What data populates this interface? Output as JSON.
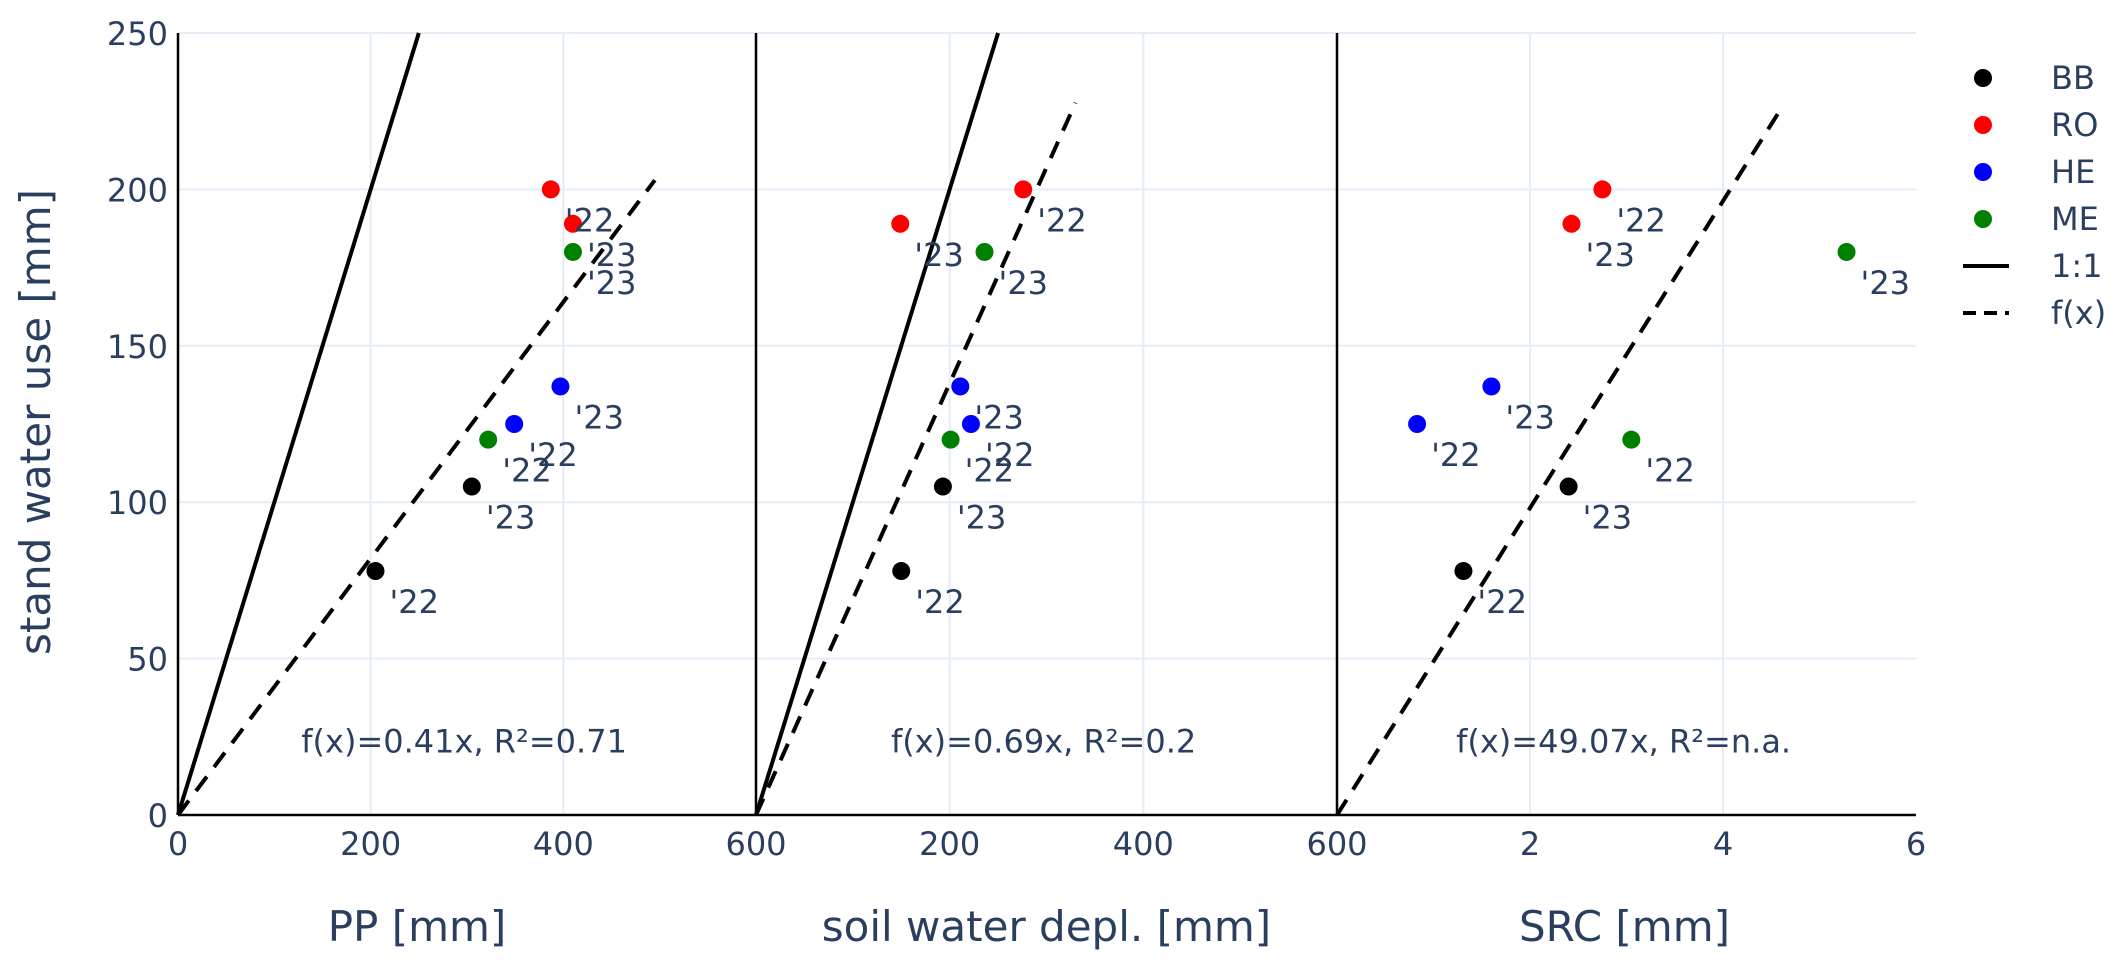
{
  "chart_data": {
    "type": "scatter",
    "ylabel": "stand water use [mm]",
    "ylim": [
      0,
      250
    ],
    "y_ticks": [
      "0",
      "50",
      "100",
      "150",
      "200",
      "250"
    ],
    "legend": {
      "position": "top-right",
      "items": [
        {
          "key": "BB",
          "label": "BB",
          "kind": "marker",
          "color": "#000000"
        },
        {
          "key": "RO",
          "label": "RO",
          "kind": "marker",
          "color": "#ff0000"
        },
        {
          "key": "HE",
          "label": "HE",
          "kind": "marker",
          "color": "#0000ff"
        },
        {
          "key": "ME",
          "label": "ME",
          "kind": "marker",
          "color": "#008000"
        },
        {
          "key": "one_to_one",
          "label": "1:1",
          "kind": "solid-line",
          "color": "#000000"
        },
        {
          "key": "fit",
          "label": "f(x)",
          "kind": "dashed-line",
          "color": "#000000"
        }
      ]
    },
    "panels": [
      {
        "id": "pp",
        "xlabel": "PP [mm]",
        "xlim": [
          0,
          600
        ],
        "x_ticks": [
          {
            "v": 0,
            "t": "0"
          },
          {
            "v": 200,
            "t": "200"
          },
          {
            "v": 400,
            "t": "400"
          },
          {
            "v": 600,
            "t": "600"
          }
        ],
        "one_to_one": true,
        "fit": {
          "slope": 0.41,
          "x_end": 495
        },
        "annotation": "f(x)=0.41x, R²=0.71",
        "points": [
          {
            "series": "BB",
            "x": 205,
            "y": 78,
            "label": "'22"
          },
          {
            "series": "BB",
            "x": 305,
            "y": 105,
            "label": "'23"
          },
          {
            "series": "RO",
            "x": 387,
            "y": 200,
            "label": "'22"
          },
          {
            "series": "RO",
            "x": 410,
            "y": 189,
            "label": "'23"
          },
          {
            "series": "HE",
            "x": 349,
            "y": 125,
            "label": "'22"
          },
          {
            "series": "HE",
            "x": 397,
            "y": 137,
            "label": "'23"
          },
          {
            "series": "ME",
            "x": 322,
            "y": 120,
            "label": "'22"
          },
          {
            "series": "ME",
            "x": 410,
            "y": 180,
            "label": "'23"
          }
        ]
      },
      {
        "id": "swd",
        "xlabel": "soil water depl. [mm]",
        "xlim": [
          0,
          600
        ],
        "x_ticks": [
          {
            "v": 200,
            "t": "200"
          },
          {
            "v": 400,
            "t": "400"
          },
          {
            "v": 600,
            "t": "600"
          }
        ],
        "one_to_one": true,
        "fit": {
          "slope": 0.69,
          "x_end": 330
        },
        "annotation": "f(x)=0.69x, R²=0.2",
        "points": [
          {
            "series": "BB",
            "x": 150,
            "y": 78,
            "label": "'22"
          },
          {
            "series": "BB",
            "x": 193,
            "y": 105,
            "label": "'23"
          },
          {
            "series": "RO",
            "x": 276,
            "y": 200,
            "label": "'22"
          },
          {
            "series": "RO",
            "x": 149,
            "y": 189,
            "label": "'23"
          },
          {
            "series": "HE",
            "x": 222,
            "y": 125,
            "label": "'22"
          },
          {
            "series": "HE",
            "x": 211,
            "y": 137,
            "label": "'23"
          },
          {
            "series": "ME",
            "x": 201,
            "y": 120,
            "label": "'22"
          },
          {
            "series": "ME",
            "x": 236,
            "y": 180,
            "label": "'23"
          }
        ]
      },
      {
        "id": "src",
        "xlabel": "SRC [mm]",
        "xlim": [
          0,
          6
        ],
        "x_ticks": [
          {
            "v": 2,
            "t": "2"
          },
          {
            "v": 4,
            "t": "4"
          },
          {
            "v": 6,
            "t": "6"
          }
        ],
        "one_to_one": false,
        "fit": {
          "slope": 49.07,
          "x_end": 4.6
        },
        "annotation": "f(x)=49.07x, R²=n.a.",
        "points": [
          {
            "series": "BB",
            "x": 1.31,
            "y": 78,
            "label": "'22"
          },
          {
            "series": "BB",
            "x": 2.4,
            "y": 105,
            "label": "'23"
          },
          {
            "series": "RO",
            "x": 2.75,
            "y": 200,
            "label": "'22"
          },
          {
            "series": "RO",
            "x": 2.43,
            "y": 189,
            "label": "'23"
          },
          {
            "series": "HE",
            "x": 0.83,
            "y": 125,
            "label": "'22"
          },
          {
            "series": "HE",
            "x": 1.6,
            "y": 137,
            "label": "'23"
          },
          {
            "series": "ME",
            "x": 3.05,
            "y": 120,
            "label": "'22"
          },
          {
            "series": "ME",
            "x": 5.28,
            "y": 180,
            "label": "'23"
          }
        ]
      }
    ]
  }
}
